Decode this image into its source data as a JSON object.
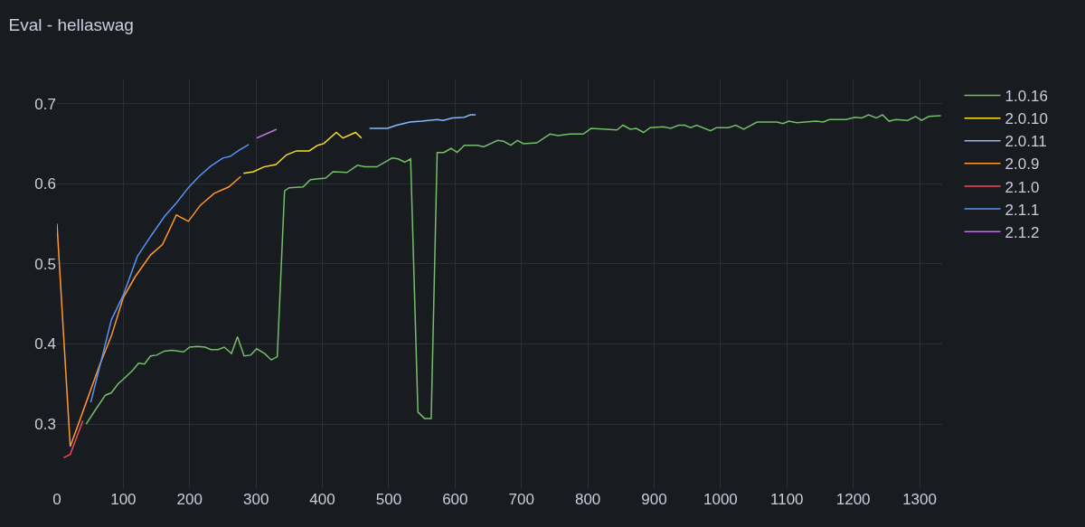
{
  "chart_data": {
    "type": "line",
    "title": "Eval - hellaswag",
    "xlim": [
      0,
      1334
    ],
    "xticks": [
      0,
      100,
      200,
      300,
      400,
      500,
      600,
      700,
      800,
      900,
      1000,
      1100,
      1200,
      1300
    ],
    "ylim": [
      0.22,
      0.73
    ],
    "yticks": [
      0.3,
      0.4,
      0.5,
      0.6,
      0.7
    ],
    "grid": true,
    "legend": "right",
    "series": [
      {
        "name": "1.0.16",
        "color": "#73bf69",
        "x": [
          44,
          59,
          73,
          82,
          92,
          100,
          114,
          123,
          132,
          141,
          150,
          162,
          173,
          191,
          200,
          212,
          223,
          232,
          243,
          252,
          263,
          272,
          282,
          292,
          301,
          313,
          323,
          332,
          343,
          350,
          371,
          382,
          405,
          416,
          437,
          453,
          464,
          482,
          505,
          514,
          524,
          533,
          544,
          554,
          564,
          573,
          583,
          594,
          603,
          614,
          634,
          643,
          664,
          673,
          684,
          694,
          703,
          723,
          743,
          755,
          773,
          793,
          805,
          844,
          853,
          864,
          873,
          884,
          894,
          914,
          925,
          937,
          946,
          955,
          964,
          985,
          994,
          1012,
          1023,
          1035,
          1055,
          1085,
          1094,
          1103,
          1115,
          1144,
          1155,
          1164,
          1180,
          1189,
          1203,
          1213,
          1223,
          1235,
          1244,
          1254,
          1264,
          1282,
          1294,
          1303,
          1314,
          1332
        ],
        "values": [
          0.3,
          0.319,
          0.336,
          0.339,
          0.35,
          0.356,
          0.367,
          0.376,
          0.375,
          0.385,
          0.386,
          0.391,
          0.392,
          0.39,
          0.396,
          0.397,
          0.396,
          0.393,
          0.393,
          0.396,
          0.388,
          0.409,
          0.385,
          0.386,
          0.394,
          0.388,
          0.38,
          0.384,
          0.591,
          0.595,
          0.596,
          0.605,
          0.607,
          0.615,
          0.614,
          0.623,
          0.621,
          0.621,
          0.632,
          0.631,
          0.627,
          0.631,
          0.315,
          0.307,
          0.307,
          0.639,
          0.639,
          0.644,
          0.639,
          0.648,
          0.648,
          0.646,
          0.654,
          0.653,
          0.648,
          0.654,
          0.65,
          0.651,
          0.662,
          0.66,
          0.662,
          0.662,
          0.669,
          0.667,
          0.673,
          0.668,
          0.669,
          0.664,
          0.67,
          0.671,
          0.669,
          0.673,
          0.673,
          0.67,
          0.673,
          0.666,
          0.67,
          0.67,
          0.673,
          0.668,
          0.677,
          0.677,
          0.675,
          0.678,
          0.676,
          0.678,
          0.677,
          0.68,
          0.68,
          0.68,
          0.683,
          0.682,
          0.686,
          0.682,
          0.686,
          0.678,
          0.68,
          0.679,
          0.684,
          0.679,
          0.684,
          0.685
        ]
      },
      {
        "name": "2.0.10",
        "color": "#fade2a",
        "x": [
          281,
          296,
          312,
          330,
          346,
          361,
          380,
          393,
          402,
          421,
          431,
          450,
          459
        ],
        "values": [
          0.613,
          0.615,
          0.621,
          0.624,
          0.636,
          0.641,
          0.641,
          0.648,
          0.65,
          0.664,
          0.657,
          0.664,
          0.657
        ]
      },
      {
        "name": "2.0.11",
        "color": "#8ab8ff",
        "x": [
          471,
          498,
          512,
          532,
          550,
          573,
          582,
          596,
          614,
          623,
          631
        ],
        "values": [
          0.669,
          0.669,
          0.673,
          0.677,
          0.678,
          0.68,
          0.679,
          0.682,
          0.683,
          0.686,
          0.686
        ]
      },
      {
        "name": "2.0.9",
        "color": "#ff9830",
        "x": [
          0,
          20,
          41,
          64,
          82,
          100,
          118,
          141,
          159,
          180,
          198,
          216,
          237,
          259,
          277
        ],
        "values": [
          0.55,
          0.272,
          0.32,
          0.373,
          0.41,
          0.458,
          0.484,
          0.511,
          0.524,
          0.561,
          0.553,
          0.573,
          0.588,
          0.596,
          0.609
        ]
      },
      {
        "name": "2.1.0",
        "color": "#f2495c",
        "x": [
          10,
          20,
          39
        ],
        "values": [
          0.258,
          0.262,
          0.304
        ]
      },
      {
        "name": "2.1.1",
        "color": "#5794f2",
        "x": [
          51,
          82,
          100,
          121,
          141,
          162,
          180,
          198,
          214,
          232,
          250,
          261,
          273,
          289
        ],
        "values": [
          0.327,
          0.43,
          0.461,
          0.509,
          0.534,
          0.559,
          0.576,
          0.595,
          0.609,
          0.622,
          0.632,
          0.634,
          0.641,
          0.649
        ]
      },
      {
        "name": "2.1.2",
        "color": "#b877d9",
        "x": [
          301,
          331
        ],
        "values": [
          0.657,
          0.668
        ]
      }
    ]
  }
}
